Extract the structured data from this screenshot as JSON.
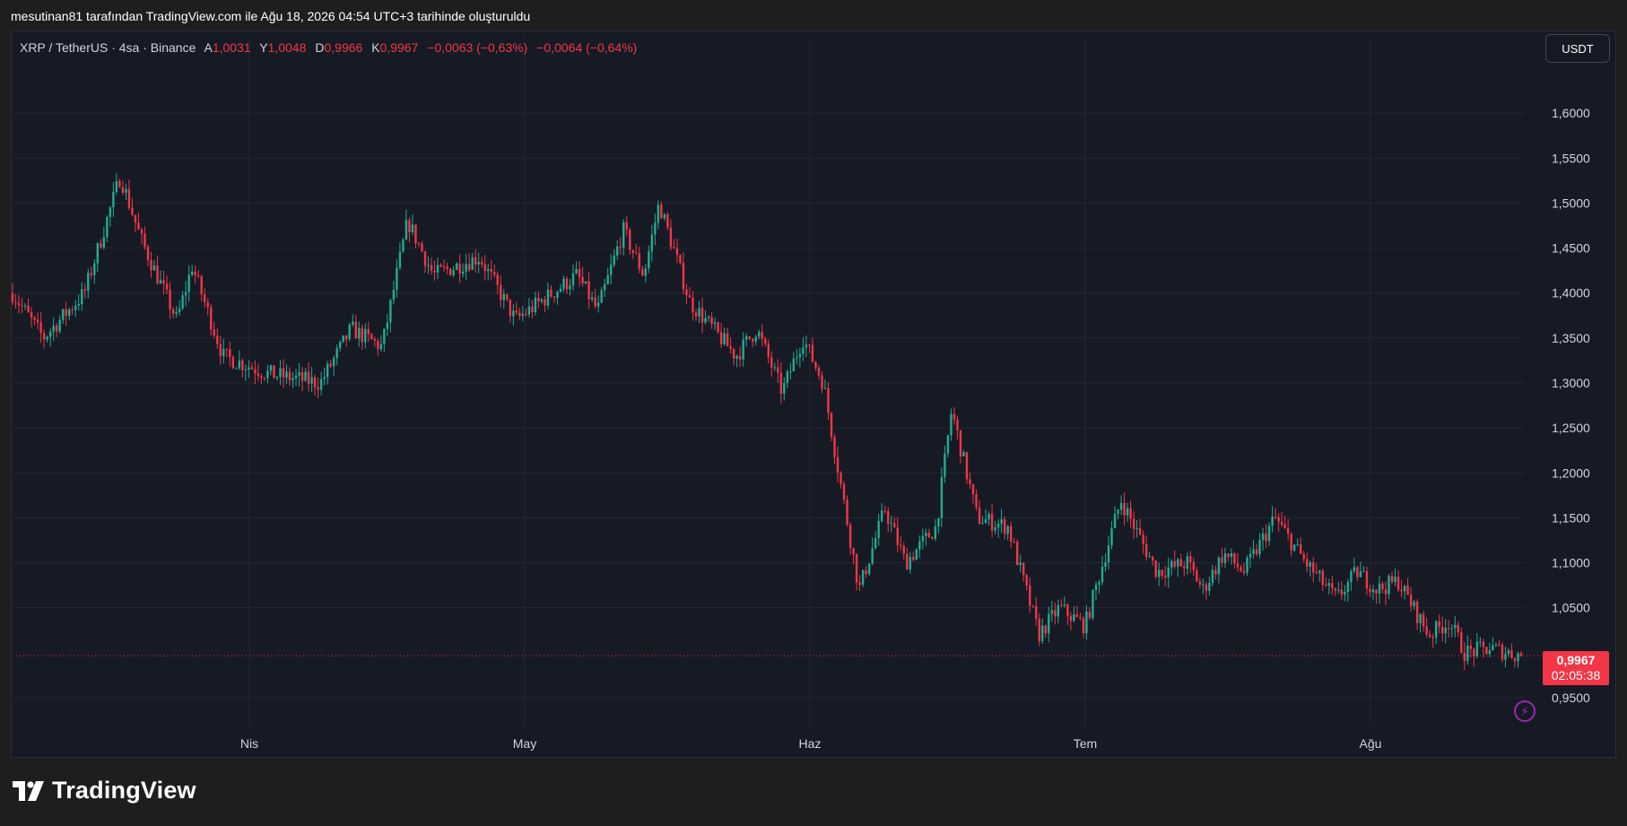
{
  "attribution": "mesutinan81 tarafından TradingView.com ile Ağu 18, 2026 04:54 UTC+3 tarihinde oluşturuldu",
  "legend": {
    "symbol": "XRP / TetherUS · 4sa · Binance",
    "open_label": "A",
    "open": "1,0031",
    "high_label": "Y",
    "high": "1,0048",
    "low_label": "D",
    "low": "0,9966",
    "close_label": "K",
    "close": "0,9967",
    "change": "−0,0063 (−0,63%)",
    "change2": "−0,0064 (−0,64%)"
  },
  "currency_button": "USDT",
  "current_price": {
    "value": "0,9967",
    "countdown": "02:05:38",
    "color": "#f23645"
  },
  "brand": "TradingView",
  "colors": {
    "up": "#22ab94",
    "down": "#f23645",
    "background": "#161a25",
    "grid": "#232733"
  },
  "chart_data": {
    "type": "candlestick",
    "x_tick_labels": [
      "Nis",
      "May",
      "Haz",
      "Tem",
      "Ağu"
    ],
    "y_tick_labels": [
      "1,6000",
      "1,5500",
      "1,5000",
      "1,4500",
      "1,4000",
      "1,3500",
      "1,3000",
      "1,2500",
      "1,2000",
      "1,1500",
      "1,1000",
      "1,0500",
      "0,9500"
    ],
    "y_ticks": [
      1.6,
      1.55,
      1.5,
      1.45,
      1.4,
      1.35,
      1.3,
      1.25,
      1.2,
      1.15,
      1.1,
      1.05,
      0.95
    ],
    "ylim": [
      0.928,
      1.66
    ],
    "grid": true,
    "approx_close_path": [
      {
        "x": 0,
        "y": 1.4
      },
      {
        "x": 30,
        "y": 1.35
      },
      {
        "x": 70,
        "y": 1.4
      },
      {
        "x": 105,
        "y": 1.53
      },
      {
        "x": 125,
        "y": 1.46
      },
      {
        "x": 160,
        "y": 1.37
      },
      {
        "x": 175,
        "y": 1.43
      },
      {
        "x": 205,
        "y": 1.33
      },
      {
        "x": 250,
        "y": 1.31
      },
      {
        "x": 300,
        "y": 1.3
      },
      {
        "x": 330,
        "y": 1.36
      },
      {
        "x": 360,
        "y": 1.34
      },
      {
        "x": 385,
        "y": 1.48
      },
      {
        "x": 410,
        "y": 1.42
      },
      {
        "x": 455,
        "y": 1.44
      },
      {
        "x": 490,
        "y": 1.37
      },
      {
        "x": 550,
        "y": 1.42
      },
      {
        "x": 570,
        "y": 1.38
      },
      {
        "x": 595,
        "y": 1.47
      },
      {
        "x": 615,
        "y": 1.42
      },
      {
        "x": 630,
        "y": 1.5
      },
      {
        "x": 660,
        "y": 1.39
      },
      {
        "x": 705,
        "y": 1.33
      },
      {
        "x": 725,
        "y": 1.36
      },
      {
        "x": 750,
        "y": 1.29
      },
      {
        "x": 770,
        "y": 1.35
      },
      {
        "x": 790,
        "y": 1.3
      },
      {
        "x": 805,
        "y": 1.2
      },
      {
        "x": 825,
        "y": 1.07
      },
      {
        "x": 850,
        "y": 1.16
      },
      {
        "x": 870,
        "y": 1.1
      },
      {
        "x": 900,
        "y": 1.14
      },
      {
        "x": 915,
        "y": 1.27
      },
      {
        "x": 940,
        "y": 1.15
      },
      {
        "x": 970,
        "y": 1.14
      },
      {
        "x": 1000,
        "y": 1.02
      },
      {
        "x": 1020,
        "y": 1.05
      },
      {
        "x": 1045,
        "y": 1.03
      },
      {
        "x": 1080,
        "y": 1.17
      },
      {
        "x": 1115,
        "y": 1.09
      },
      {
        "x": 1145,
        "y": 1.1
      },
      {
        "x": 1160,
        "y": 1.07
      },
      {
        "x": 1180,
        "y": 1.11
      },
      {
        "x": 1200,
        "y": 1.09
      },
      {
        "x": 1230,
        "y": 1.15
      },
      {
        "x": 1260,
        "y": 1.1
      },
      {
        "x": 1290,
        "y": 1.06
      },
      {
        "x": 1310,
        "y": 1.09
      },
      {
        "x": 1330,
        "y": 1.07
      },
      {
        "x": 1350,
        "y": 1.08
      },
      {
        "x": 1380,
        "y": 1.02
      },
      {
        "x": 1400,
        "y": 1.035
      },
      {
        "x": 1415,
        "y": 1.0
      },
      {
        "x": 1440,
        "y": 1.005
      },
      {
        "x": 1470,
        "y": 0.9967
      }
    ]
  }
}
